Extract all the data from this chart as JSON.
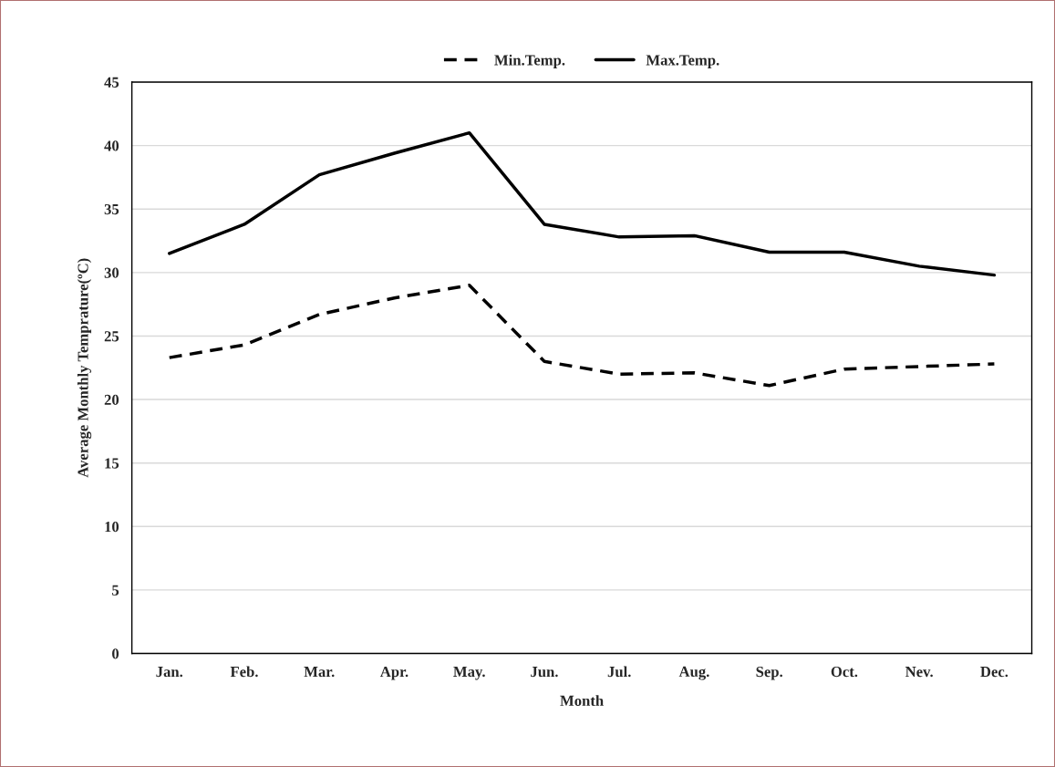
{
  "chart_data": {
    "type": "line",
    "xlabel": "Month",
    "ylabel": "Average Monthly Temprature(ºC)",
    "categories": [
      "Jan.",
      "Feb.",
      "Mar.",
      "Apr.",
      "May.",
      "Jun.",
      "Jul.",
      "Aug.",
      "Sep.",
      "Oct.",
      "Nev.",
      "Dec."
    ],
    "series": [
      {
        "name": "Min.Temp.",
        "color": "#000000",
        "line_style": "dashed",
        "values": [
          23.3,
          24.3,
          26.7,
          28.0,
          29.0,
          23.0,
          22.0,
          22.1,
          21.1,
          22.4,
          22.6,
          22.8
        ]
      },
      {
        "name": "Max.Temp.",
        "color": "#000000",
        "line_style": "solid",
        "values": [
          31.5,
          33.8,
          37.7,
          39.4,
          41.0,
          33.8,
          32.8,
          32.9,
          31.6,
          31.6,
          30.5,
          29.8
        ]
      }
    ],
    "ylim": [
      0,
      45
    ],
    "yticks": [
      0,
      5,
      10,
      15,
      20,
      25,
      30,
      35,
      40,
      45
    ],
    "grid": "y",
    "legend": "top",
    "marker": "none"
  }
}
